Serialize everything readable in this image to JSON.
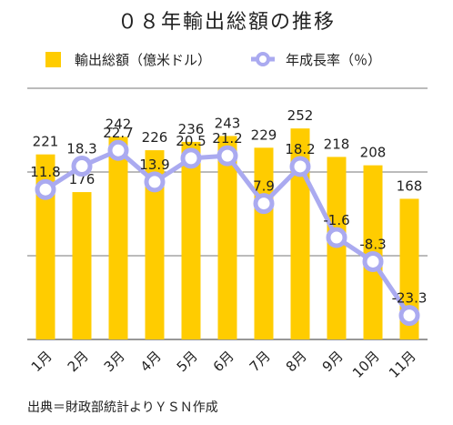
{
  "chart_data": {
    "type": "bar",
    "title": "０８年輸出総額の推移",
    "categories": [
      "1月",
      "2月",
      "3月",
      "4月",
      "5月",
      "6月",
      "7月",
      "8月",
      "9月",
      "10月",
      "11月"
    ],
    "series": [
      {
        "name": "輸出総額（億米ドル）",
        "type": "bar",
        "axis": "left",
        "values": [
          221,
          176,
          242,
          226,
          236,
          243,
          229,
          252,
          218,
          208,
          168
        ]
      },
      {
        "name": "年成長率（％）",
        "type": "line",
        "axis": "right",
        "values": [
          11.8,
          18.3,
          22.7,
          13.9,
          20.5,
          21.2,
          7.9,
          18.2,
          -1.6,
          -8.3,
          -23.3
        ]
      }
    ],
    "left_axis_range": [
      0,
      300
    ],
    "right_axis_range": [
      -30,
      40
    ],
    "grid": "horizontal",
    "legend": "top-center",
    "source": "出典＝財政部統計よりＹＳＮ作成"
  },
  "colors": {
    "bar": "#ffcc00",
    "line": "#aaaaf0",
    "marker_fill": "#ffffff",
    "grid": "#777777",
    "text": "#222222"
  }
}
